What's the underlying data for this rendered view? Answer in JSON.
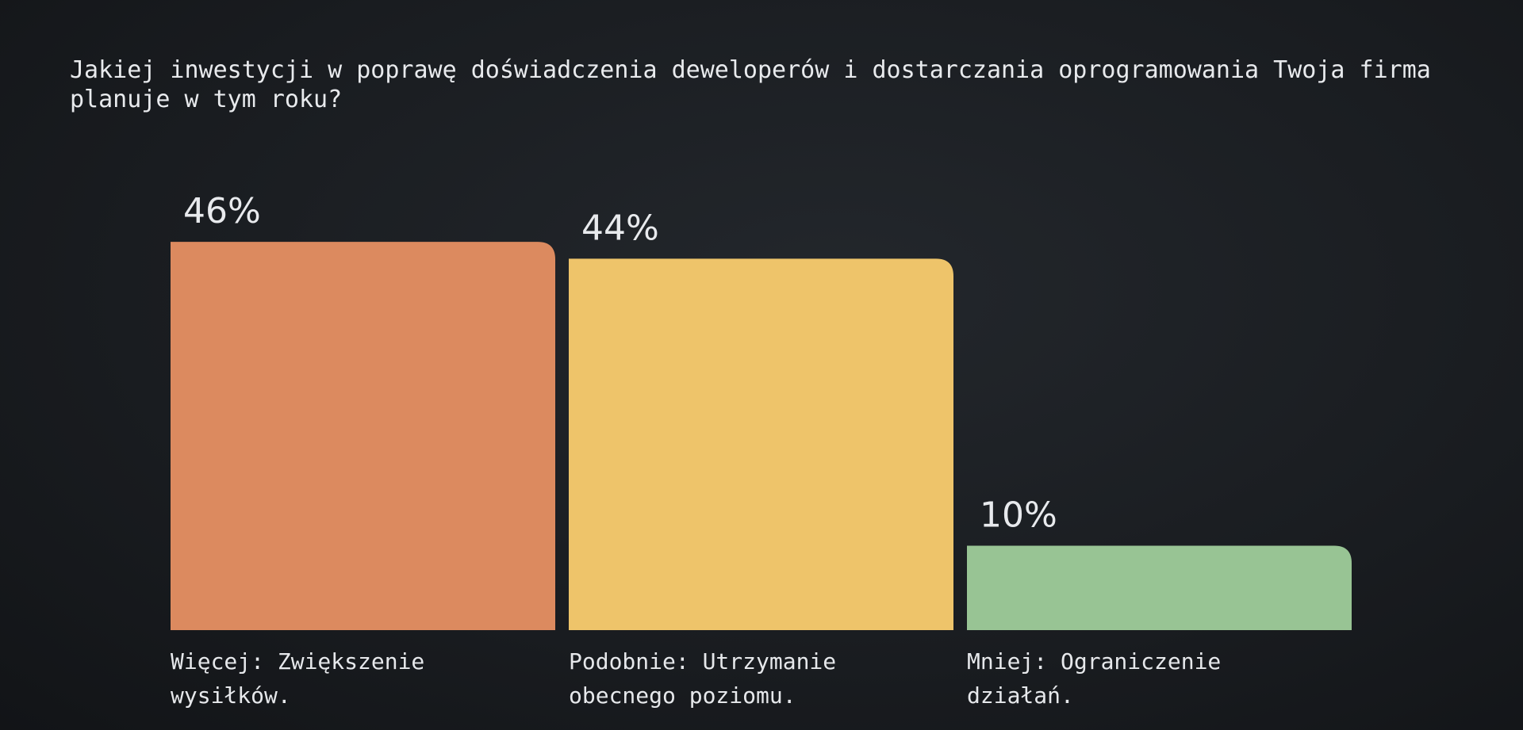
{
  "chart_data": {
    "type": "bar",
    "title": "Jakiej inwestycji w poprawę doświadczenia deweloperów i dostarczania oprogramowania Twoja firma planuje w tym roku?",
    "categories": [
      "Więcej: Zwiększenie wysiłków.",
      "Podobnie: Utrzymanie obecnego poziomu.",
      "Mniej: Ograniczenie działań."
    ],
    "values": [
      46,
      44,
      10
    ],
    "value_labels": [
      "46%",
      "44%",
      "10%"
    ],
    "colors": [
      "#dc8a5f",
      "#eec46a",
      "#98c494"
    ],
    "xlabel": "",
    "ylabel": "",
    "grid": false
  }
}
